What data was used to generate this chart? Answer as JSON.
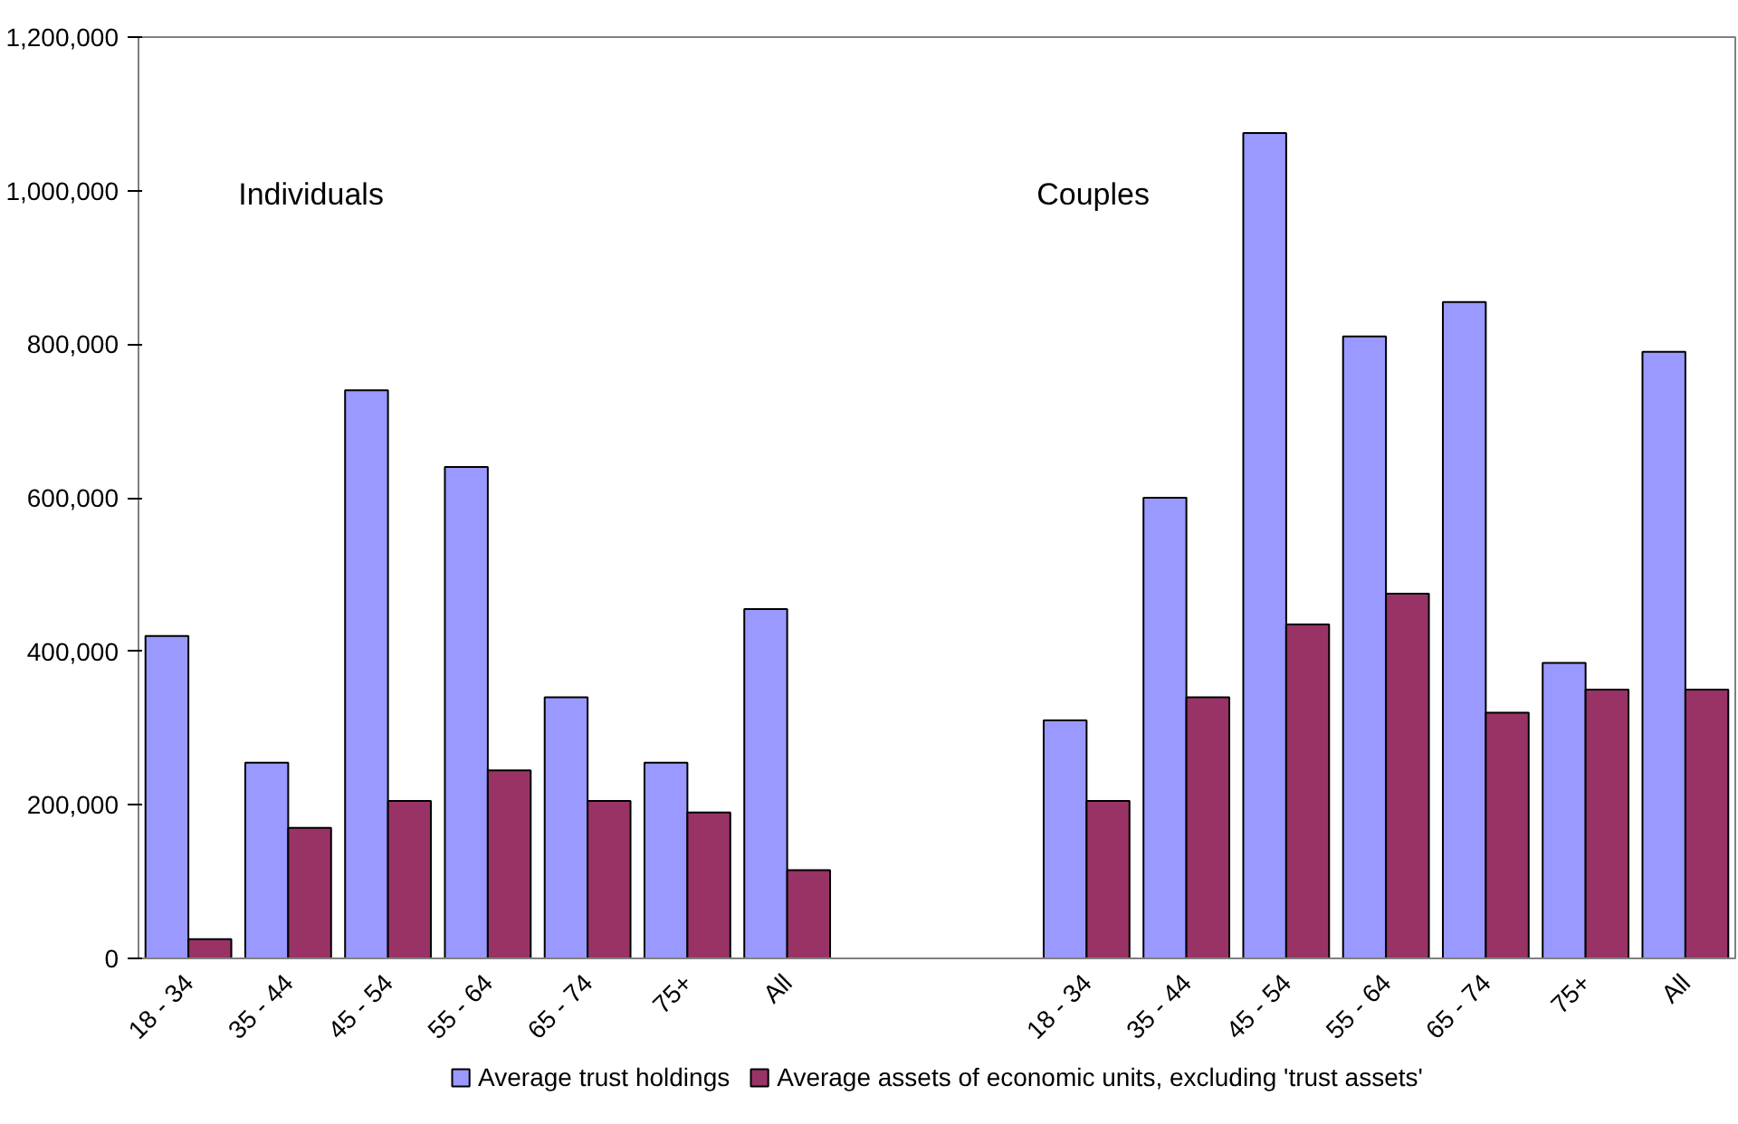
{
  "chart_data": {
    "type": "bar",
    "categories": [
      "18 - 34",
      "35 - 44",
      "45 - 54",
      "55 - 64",
      "65 - 74",
      "75+",
      "All",
      null,
      null,
      "18 - 34",
      "35 - 44",
      "45 - 54",
      "55 - 64",
      "65 - 74",
      "75+",
      "All"
    ],
    "series": [
      {
        "name": "Average trust holdings",
        "color": "#9999ff",
        "values": [
          420000,
          255000,
          740000,
          640000,
          340000,
          255000,
          455000,
          null,
          null,
          310000,
          600000,
          1075000,
          810000,
          855000,
          385000,
          790000
        ]
      },
      {
        "name": "Average assets of economic units, excluding 'trust assets'",
        "color": "#993366",
        "values": [
          25000,
          170000,
          205000,
          245000,
          205000,
          190000,
          115000,
          null,
          null,
          205000,
          340000,
          435000,
          475000,
          320000,
          350000,
          350000
        ]
      }
    ],
    "annotations": [
      "Individuals",
      "Couples"
    ],
    "ylim": [
      0,
      1200000
    ],
    "yticks": [
      {
        "value": 0,
        "label": "0"
      },
      {
        "value": 200000,
        "label": "200,000"
      },
      {
        "value": 400000,
        "label": "400,000"
      },
      {
        "value": 600000,
        "label": "600,000"
      },
      {
        "value": 800000,
        "label": "800,000"
      },
      {
        "value": 1000000,
        "label": "1,000,000"
      },
      {
        "value": 1200000,
        "label": "1,200,000"
      }
    ],
    "grid": false,
    "legend": "bottom"
  }
}
